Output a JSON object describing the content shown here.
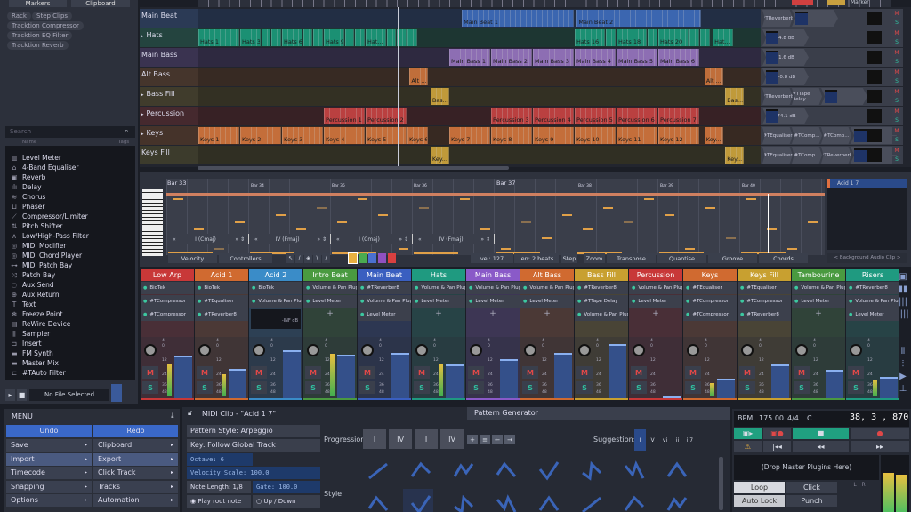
{
  "left_panel": {
    "tabs": [
      "Markers",
      "Clipboard"
    ],
    "tags": [
      "Rack",
      "Step Clips",
      "Tracktion Compressor",
      "Tracktion EQ Filter",
      "Tracktion Reverb"
    ],
    "search_placeholder": "Search",
    "columns": [
      "Name",
      "Tags"
    ],
    "plugins": [
      {
        "label": "Level Meter",
        "icon": "meter-icon",
        "glyph": "▥"
      },
      {
        "label": "4-Band Equaliser",
        "icon": "eq-icon",
        "glyph": "⌂"
      },
      {
        "label": "Reverb",
        "icon": "reverb-icon",
        "glyph": "▣"
      },
      {
        "label": "Delay",
        "icon": "delay-icon",
        "glyph": "ılı"
      },
      {
        "label": "Chorus",
        "icon": "chorus-icon",
        "glyph": "≋"
      },
      {
        "label": "Phaser",
        "icon": "phaser-icon",
        "glyph": "⊔"
      },
      {
        "label": "Compressor/Limiter",
        "icon": "compressor-icon",
        "glyph": "⟋"
      },
      {
        "label": "Pitch Shifter",
        "icon": "pitch-icon",
        "glyph": "⇅"
      },
      {
        "label": "Low/High-Pass Filter",
        "icon": "filter-icon",
        "glyph": "∧"
      },
      {
        "label": "MIDI Modifier",
        "icon": "midi-icon",
        "glyph": "◎"
      },
      {
        "label": "MIDI Chord Player",
        "icon": "midi-chord-icon",
        "glyph": "◎"
      },
      {
        "label": "MIDI Patch Bay",
        "icon": "patch-icon",
        "glyph": "⊶"
      },
      {
        "label": "Patch Bay",
        "icon": "shuffle-icon",
        "glyph": "⤨"
      },
      {
        "label": "Aux Send",
        "icon": "aux-send-icon",
        "glyph": "◌"
      },
      {
        "label": "Aux Return",
        "icon": "aux-return-icon",
        "glyph": "⊕"
      },
      {
        "label": "Text",
        "icon": "text-icon",
        "glyph": "T"
      },
      {
        "label": "Freeze Point",
        "icon": "freeze-icon",
        "glyph": "❄"
      },
      {
        "label": "ReWire Device",
        "icon": "rewire-icon",
        "glyph": "▤"
      },
      {
        "label": "Sampler",
        "icon": "sampler-icon",
        "glyph": "⫼"
      },
      {
        "label": "Insert",
        "icon": "insert-icon",
        "glyph": "⊐"
      },
      {
        "label": "FM Synth",
        "icon": "synth-icon",
        "glyph": "▬"
      },
      {
        "label": "Master Mix",
        "icon": "master-icon",
        "glyph": "▬"
      },
      {
        "label": "#TAuto Filter",
        "icon": "auto-filter-icon",
        "glyph": "⊏"
      }
    ],
    "file_status": "No File Selected"
  },
  "tracks": [
    {
      "name": "Main Beat",
      "color": "#4a7fdc",
      "bg": "#2b3a55",
      "clips": [
        {
          "n": "Main Beat 1",
          "s": 6.3,
          "l": 2.7
        },
        {
          "n": "Main Beat 2",
          "s": 9.05,
          "l": 3
        }
      ],
      "plugins": [
        "#TReverber8",
        "",
        ""
      ],
      "volume": ""
    },
    {
      "name": "Hats",
      "expand": true,
      "color": "#22b490",
      "bg": "#24443f",
      "clips": [
        {
          "n": "Hats 1",
          "s": 0,
          "l": 1
        },
        {
          "n": "Hats 3",
          "s": 1,
          "l": 0.5
        },
        {
          "n": "",
          "s": 1.5,
          "l": 0.25
        },
        {
          "n": "",
          "s": 1.75,
          "l": 0.25
        },
        {
          "n": "Hats 6",
          "s": 2,
          "l": 0.5
        },
        {
          "n": "",
          "s": 2.5,
          "l": 0.25
        },
        {
          "n": "",
          "s": 2.75,
          "l": 0.25
        },
        {
          "n": "Hats 9",
          "s": 3,
          "l": 0.5
        },
        {
          "n": "",
          "s": 3.5,
          "l": 0.25
        },
        {
          "n": "",
          "s": 3.75,
          "l": 0.25
        },
        {
          "n": "Hat...",
          "s": 4,
          "l": 0.5
        },
        {
          "n": "",
          "s": 4.5,
          "l": 0.25
        },
        {
          "n": "",
          "s": 4.75,
          "l": 0.25
        },
        {
          "n": "",
          "s": 5,
          "l": 0.25
        },
        {
          "n": "Hats 16",
          "s": 9,
          "l": 0.75
        },
        {
          "n": "",
          "s": 9.75,
          "l": 0.25
        },
        {
          "n": "Hats 18",
          "s": 10,
          "l": 0.75
        },
        {
          "n": "",
          "s": 10.75,
          "l": 0.25
        },
        {
          "n": "Hats 20",
          "s": 11,
          "l": 0.75
        },
        {
          "n": "",
          "s": 11.75,
          "l": 0.25
        },
        {
          "n": "",
          "s": 12,
          "l": 0.25
        },
        {
          "n": "Hat...",
          "s": 12.3,
          "l": 0.5
        }
      ],
      "plugins": [
        "",
        "",
        "-4.8 dB"
      ],
      "volume": "-4.8 dB"
    },
    {
      "name": "Main Bass",
      "color": "#b08ae0",
      "bg": "#3a3350",
      "clips": [
        {
          "n": "Main Bass 1",
          "s": 6,
          "l": 1
        },
        {
          "n": "Main Bass 2",
          "s": 7,
          "l": 1
        },
        {
          "n": "Main Bass 3",
          "s": 8,
          "l": 1
        },
        {
          "n": "Main Bass 4",
          "s": 9,
          "l": 1
        },
        {
          "n": "Main Bass 5",
          "s": 10,
          "l": 1
        },
        {
          "n": "Main Bass 6",
          "s": 11,
          "l": 1
        }
      ],
      "volume": "-1.6 dB"
    },
    {
      "name": "Alt Bass",
      "color": "#f08a48",
      "bg": "#45352c",
      "clips": [
        {
          "n": "Alt ...",
          "s": 5.05,
          "l": 0.47
        },
        {
          "n": "Alt ...",
          "s": 12.1,
          "l": 0.47
        }
      ],
      "volume": "+0.8 dB"
    },
    {
      "name": "Bass Fill",
      "expand": true,
      "color": "#f0c048",
      "bg": "#403c2c",
      "clips": [
        {
          "n": "Bas...",
          "s": 5.55,
          "l": 0.47
        },
        {
          "n": "Bas...",
          "s": 12.6,
          "l": 0.47
        }
      ],
      "plugins": [
        "#TReverber8",
        "#TTape Delay"
      ],
      "volume": ""
    },
    {
      "name": "Percussion",
      "expand": true,
      "color": "#e85050",
      "bg": "#45292e",
      "clips": [
        {
          "n": "Percussion 1",
          "s": 3,
          "l": 1
        },
        {
          "n": "Percussion 2",
          "s": 4,
          "l": 1
        },
        {
          "n": "Percussion 3",
          "s": 7,
          "l": 1
        },
        {
          "n": "Percussion 4",
          "s": 8,
          "l": 1
        },
        {
          "n": "Percussion 5",
          "s": 9,
          "l": 1
        },
        {
          "n": "Percussion 6",
          "s": 10,
          "l": 1
        },
        {
          "n": "Percussion 7",
          "s": 11,
          "l": 1
        }
      ],
      "volume": "-74.1 dB"
    },
    {
      "name": "Keys",
      "expand": true,
      "color": "#f58a48",
      "bg": "#45332a",
      "clips": [
        {
          "n": "Keys 1",
          "s": 0,
          "l": 1
        },
        {
          "n": "Keys 2",
          "s": 1,
          "l": 1
        },
        {
          "n": "Keys 3",
          "s": 2,
          "l": 1
        },
        {
          "n": "Keys 4",
          "s": 3,
          "l": 1
        },
        {
          "n": "Keys 5",
          "s": 4,
          "l": 1
        },
        {
          "n": "Keys 6",
          "s": 5,
          "l": 0.5
        },
        {
          "n": "Keys 7",
          "s": 6,
          "l": 1
        },
        {
          "n": "Keys 8",
          "s": 7,
          "l": 1
        },
        {
          "n": "Keys 9",
          "s": 8,
          "l": 1
        },
        {
          "n": "Keys 10",
          "s": 9,
          "l": 1
        },
        {
          "n": "Keys 11",
          "s": 10,
          "l": 1
        },
        {
          "n": "Keys 12",
          "s": 11,
          "l": 1
        },
        {
          "n": "Key...",
          "s": 12.1,
          "l": 0.47
        }
      ],
      "plugins": [
        "#TEqualiser",
        "#TComp...",
        "#TComp..."
      ],
      "volume": ""
    },
    {
      "name": "Keys Fill",
      "color": "#f0c048",
      "bg": "#3c3b2c",
      "clips": [
        {
          "n": "Key...",
          "s": 5.55,
          "l": 0.47
        },
        {
          "n": "Key...",
          "s": 12.6,
          "l": 0.47
        }
      ],
      "plugins": [
        "#TEqualiser",
        "#TComp...",
        "#TReverber8"
      ],
      "volume": ""
    }
  ],
  "track_controls": {
    "auto": "A",
    "add": "+",
    "mute": "M",
    "solo": "S"
  },
  "piano_roll": {
    "bars": [
      "Bar 33",
      "Bar 34",
      "Bar 35",
      "Bar 36",
      "Bar 37",
      "Bar 38",
      "Bar 39",
      "Bar 40"
    ],
    "chords": [
      "I (Cmaj)",
      "IV (Fmaj)",
      "I (Cmaj)",
      "IV (Fmaj)"
    ],
    "toolbar": {
      "velocity": "Velocity",
      "controllers": "Controllers",
      "vel": "vel: 127",
      "len": "len: 2 beats",
      "step": "Step",
      "zoom": "Zoom",
      "transpose": "Transpose",
      "quantise": "Quantise",
      "groove": "Groove",
      "chords": "Chords"
    },
    "note_colors": [
      "#e8b040",
      "#4aaa50",
      "#4a70d0",
      "#9050c0",
      "#d84040"
    ],
    "clip_list": {
      "item": "Acid 1 7",
      "footer": "< Background Audio Clip >"
    }
  },
  "mixer": [
    {
      "name": "Low Arp",
      "color": "#c83838",
      "plugins": [
        "BioTek",
        "#TCompressor",
        "#TCompressor"
      ],
      "fader": 0.72,
      "meter": 0.6
    },
    {
      "name": "Acid 1",
      "color": "#d06a30",
      "plugins": [
        "BioTek",
        "#TEqualiser",
        "#TReverber8"
      ],
      "fader": 0.5,
      "meter": 0.4
    },
    {
      "name": "Acid 2",
      "color": "#3a8cc8",
      "plugins": [
        "BioTek",
        "Volume & Pan Plugin"
      ],
      "fader": 0.82,
      "meter": 0,
      "level": "-INF dB"
    },
    {
      "name": "Intro Beat",
      "color": "#4a9a40",
      "plugins": [
        "Volume & Pan Plugin",
        "Level Meter"
      ],
      "fader": 0.75,
      "meter": 0.78
    },
    {
      "name": "Main Beat",
      "color": "#3a5fc0",
      "plugins": [
        "#TReverber8",
        "Volume & Pan Plugin",
        "Level Meter"
      ],
      "fader": 0.78,
      "meter": 0
    },
    {
      "name": "Hats",
      "color": "#1f9a80",
      "plugins": [
        "Volume & Pan Plugin",
        "Level Meter"
      ],
      "fader": 0.58,
      "meter": 0.6
    },
    {
      "name": "Main Bass",
      "color": "#8a5ac8",
      "plugins": [
        "Volume & Pan Plugin",
        "Level Meter"
      ],
      "fader": 0.67,
      "meter": 0
    },
    {
      "name": "Alt Bass",
      "color": "#d06a30",
      "plugins": [
        "Volume & Pan Plugin",
        "Level Meter"
      ],
      "fader": 0.77,
      "meter": 0
    },
    {
      "name": "Bass Fill",
      "color": "#c8a030",
      "plugins": [
        "#TReverber8",
        "#TTape Delay",
        "Volume & Pan Plugin"
      ],
      "fader": 0.93,
      "meter": 0
    },
    {
      "name": "Percussion",
      "color": "#c83838",
      "plugins": [
        "Volume & Pan Plugin",
        "Level Meter"
      ],
      "fader": 0.03,
      "meter": 0
    },
    {
      "name": "Keys",
      "color": "#d06a30",
      "plugins": [
        "#TEqualiser",
        "#TCompressor",
        "#TCompressor"
      ],
      "fader": 0.33,
      "meter": 0.25
    },
    {
      "name": "Keys Fill",
      "color": "#c8a030",
      "plugins": [
        "#TEqualiser",
        "#TCompressor",
        "#TReverber8"
      ],
      "fader": 0.57,
      "meter": 0
    },
    {
      "name": "Tambourine",
      "color": "#4a9a40",
      "plugins": [
        "Volume & Pan Plugin",
        "Level Meter"
      ],
      "fader": 0.48,
      "meter": 0
    },
    {
      "name": "Risers",
      "color": "#1f9a80",
      "plugins": [
        "#TReverber8",
        "Volume & Pan Plugin",
        "Level Meter"
      ],
      "fader": 0.37,
      "meter": 0.3
    }
  ],
  "mixer_scale": [
    "4",
    "0",
    "12",
    "24",
    "36",
    "48"
  ],
  "menu": {
    "title": "MENU",
    "undo": "Undo",
    "redo": "Redo",
    "left": [
      "Save",
      "Import",
      "Timecode",
      "Snapping",
      "Options"
    ],
    "right": [
      "Clipboard",
      "Export",
      "Click Track",
      "Tracks",
      "Automation"
    ]
  },
  "midi_panel": {
    "title": "MIDI Clip - \"Acid 1 7\"",
    "tab": "Pattern Generator",
    "pattern_style": "Pattern Style: Arpeggio",
    "key": "Key: Follow Global Track",
    "octave": "Octave: 6",
    "velocity_scale": "Velocity Scale: 100.0",
    "note_length": "Note Length: 1/8",
    "gate": "Gate: 100.0",
    "play_root": "Play root note",
    "up_down": "Up / Down",
    "progression_label": "Progression:",
    "progression": [
      "I",
      "IV",
      "I",
      "IV"
    ],
    "suggestion_label": "Suggestion:",
    "suggestions": [
      "I",
      "V",
      "vi",
      "ii",
      "ii7"
    ],
    "style_label": "Style:"
  },
  "transport": {
    "bpm_label": "BPM",
    "bpm": "175.00",
    "sig": "4/4",
    "key": "C",
    "position": "38, 3 , 870",
    "drop_plugins": "(Drop Master Plugins Here)",
    "loop": "Loop",
    "click": "Click",
    "auto_lock": "Auto Lock",
    "punch": "Punch",
    "lr": "L | R"
  }
}
